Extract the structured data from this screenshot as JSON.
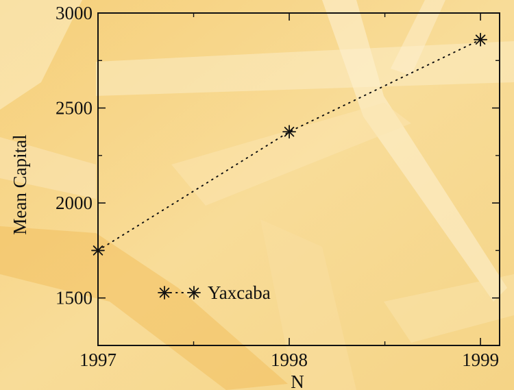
{
  "chart_data": {
    "type": "line",
    "title": "",
    "xlabel": "N",
    "ylabel": "Mean Capital",
    "xlim": [
      1997,
      1999.1
    ],
    "ylim": [
      1250,
      3000
    ],
    "xticks": [
      1997,
      1998,
      1999
    ],
    "xtick_labels": [
      "1997",
      "1998",
      "1999"
    ],
    "yticks": [
      1500,
      2000,
      2500,
      3000
    ],
    "ytick_labels": [
      "1500",
      "2000",
      "2500",
      "3000"
    ],
    "grid": false,
    "legend_position": "bottom-left",
    "series": [
      {
        "name": "Yaxcaba",
        "x": [
          1997,
          1998,
          1999
        ],
        "y": [
          1750,
          2375,
          2860
        ],
        "line_style": "dotted",
        "marker": "asterisk",
        "color": "#111111"
      }
    ]
  }
}
